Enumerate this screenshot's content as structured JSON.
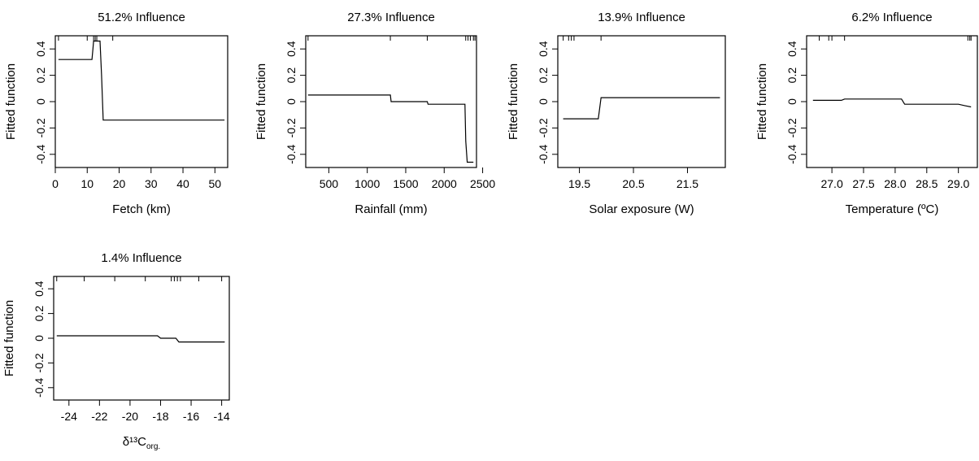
{
  "chart_data": [
    {
      "type": "line",
      "title": "51.2% Influence",
      "xlabel": "Fetch (km)",
      "ylabel": "Fitted function",
      "xlim": [
        0,
        54
      ],
      "ylim": [
        -0.5,
        0.5
      ],
      "xticks": [
        0,
        10,
        20,
        30,
        40,
        50
      ],
      "xtick_labels": [
        "0",
        "10",
        "20",
        "30",
        "40",
        "50"
      ],
      "yticks": [
        -0.4,
        -0.2,
        0,
        0.2,
        0.4
      ],
      "ytick_labels": [
        "-0.4",
        "-0.2",
        "0",
        "0.2",
        "0.4"
      ],
      "rug": [
        1,
        10,
        12,
        12.5,
        13,
        18
      ],
      "x": [
        1,
        11.5,
        11.8,
        12,
        14,
        14.5,
        15,
        53
      ],
      "y": [
        0.32,
        0.32,
        0.4,
        0.46,
        0.46,
        0.2,
        -0.14,
        -0.14
      ]
    },
    {
      "type": "line",
      "title": "27.3% Influence",
      "xlabel": "Rainfall (mm)",
      "ylabel": "Fitted function",
      "xlim": [
        200,
        2420
      ],
      "ylim": [
        -0.5,
        0.5
      ],
      "xticks": [
        500,
        1000,
        1500,
        2000,
        2500
      ],
      "xtick_labels": [
        "500",
        "1000",
        "1500",
        "2000",
        "2500"
      ],
      "yticks": [
        -0.4,
        -0.2,
        0,
        0.2,
        0.4
      ],
      "ytick_labels": [
        "-0.4",
        "-0.2",
        "0",
        "0.2",
        "0.4"
      ],
      "rug": [
        230,
        1300,
        1780,
        2280,
        2310,
        2340,
        2380,
        2400
      ],
      "x": [
        230,
        1300,
        1310,
        1780,
        1790,
        2270,
        2280,
        2300,
        2380
      ],
      "y": [
        0.05,
        0.05,
        0.0,
        0.0,
        -0.02,
        -0.02,
        -0.3,
        -0.46,
        -0.46
      ]
    },
    {
      "type": "line",
      "title": "13.9% Influence",
      "xlabel": "Solar exposure (W)",
      "ylabel": "Fitted function",
      "xlim": [
        19.1,
        22.2
      ],
      "ylim": [
        -0.5,
        0.5
      ],
      "xticks": [
        19.5,
        20.5,
        21.5
      ],
      "xtick_labels": [
        "19.5",
        "20.5",
        "21.5"
      ],
      "yticks": [
        -0.4,
        -0.2,
        0,
        0.2,
        0.4
      ],
      "ytick_labels": [
        "-0.4",
        "-0.2",
        "0",
        "0.2",
        "0.4"
      ],
      "rug": [
        19.2,
        19.3,
        19.35,
        19.4,
        19.9
      ],
      "x": [
        19.2,
        19.85,
        19.9,
        22.1
      ],
      "y": [
        -0.13,
        -0.13,
        0.03,
        0.03
      ]
    },
    {
      "type": "line",
      "title": "6.2% Influence",
      "xlabel": "Temperature (ºC)",
      "ylabel": "Fitted function",
      "xlim": [
        26.6,
        29.3
      ],
      "ylim": [
        -0.5,
        0.5
      ],
      "xticks": [
        27.0,
        27.5,
        28.0,
        28.5,
        29.0
      ],
      "xtick_labels": [
        "27.0",
        "27.5",
        "28.0",
        "28.5",
        "29.0"
      ],
      "yticks": [
        -0.4,
        -0.2,
        0,
        0.2,
        0.4
      ],
      "ytick_labels": [
        "-0.4",
        "-0.2",
        "0",
        "0.2",
        "0.4"
      ],
      "rug": [
        26.8,
        26.95,
        27.0,
        27.2,
        29.15,
        29.18,
        29.2
      ],
      "x": [
        26.7,
        27.15,
        27.2,
        28.1,
        28.15,
        29.0,
        29.1,
        29.2
      ],
      "y": [
        0.01,
        0.01,
        0.02,
        0.02,
        -0.02,
        -0.02,
        -0.03,
        -0.04
      ]
    },
    {
      "type": "line",
      "title": "1.4% Influence",
      "xlabel": "δ¹³C",
      "xlabel_sub": "org.",
      "ylabel": "Fitted function",
      "xlim": [
        -25,
        -13.5
      ],
      "ylim": [
        -0.5,
        0.5
      ],
      "xticks": [
        -24,
        -22,
        -20,
        -18,
        -16,
        -14
      ],
      "xtick_labels": [
        "-24",
        "-22",
        "-20",
        "-18",
        "-16",
        "-14"
      ],
      "yticks": [
        -0.4,
        -0.2,
        0,
        0.2,
        0.4
      ],
      "ytick_labels": [
        "-0.4",
        "-0.2",
        "0",
        "0.2",
        "0.4"
      ],
      "rug": [
        -24.8,
        -23,
        -21,
        -19,
        -17.3,
        -17.1,
        -16.9,
        -16.7,
        -15.5,
        -14
      ],
      "x": [
        -24.8,
        -18.2,
        -18.0,
        -17.0,
        -16.8,
        -13.8
      ],
      "y": [
        0.02,
        0.02,
        0.0,
        0.0,
        -0.03,
        -0.03
      ]
    }
  ]
}
